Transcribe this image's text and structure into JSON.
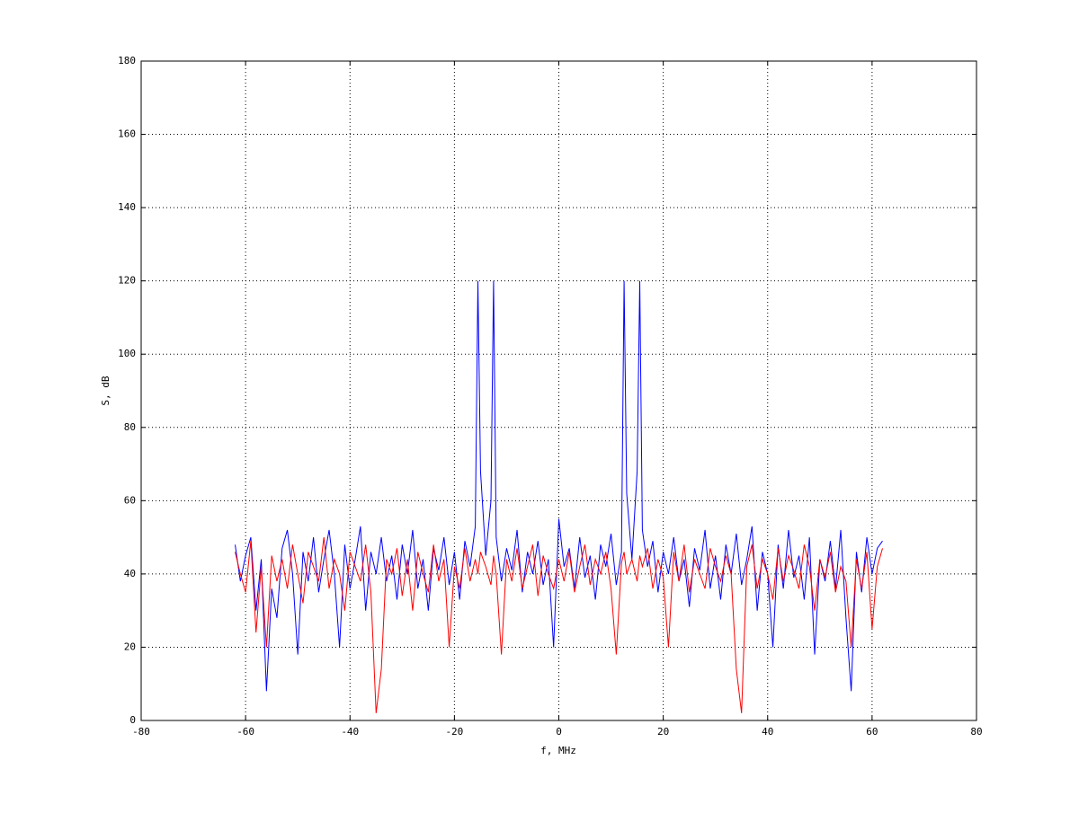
{
  "chart_data": {
    "type": "line",
    "xlabel": "f, MHz",
    "ylabel": "S, dB",
    "x": [
      -62,
      -61,
      -60,
      -59,
      -58,
      -57,
      -56,
      -55,
      -54,
      -53,
      -52,
      -51,
      -50,
      -49,
      -48,
      -47,
      -46,
      -45,
      -44,
      -43,
      -42,
      -41,
      -40,
      -39,
      -38,
      -37,
      -36,
      -35,
      -34,
      -33,
      -32,
      -31,
      -30,
      -29,
      -28,
      -27,
      -26,
      -25,
      -24,
      -23,
      -22,
      -21,
      -20,
      -19,
      -18,
      -17,
      -16,
      -15.5,
      -15,
      -14,
      -13,
      -12.5,
      -12,
      -11,
      -10,
      -9,
      -8,
      -7,
      -6,
      -5,
      -4,
      -3,
      -2,
      -1,
      0,
      1,
      2,
      3,
      4,
      5,
      6,
      7,
      8,
      9,
      10,
      11,
      12,
      12.5,
      13,
      14,
      15,
      15.5,
      16,
      17,
      18,
      19,
      20,
      21,
      22,
      23,
      24,
      25,
      26,
      27,
      28,
      29,
      30,
      31,
      32,
      33,
      34,
      35,
      36,
      37,
      38,
      39,
      40,
      41,
      42,
      43,
      44,
      45,
      46,
      47,
      48,
      49,
      50,
      51,
      52,
      53,
      54,
      55,
      56,
      57,
      58,
      59,
      60,
      61,
      62
    ],
    "series": [
      {
        "color": "#0000ff",
        "values": [
          48,
          38,
          45,
          50,
          30,
          44,
          8,
          36,
          28,
          47,
          52,
          40,
          18,
          46,
          38,
          50,
          35,
          44,
          52,
          40,
          20,
          48,
          36,
          44,
          53,
          30,
          46,
          40,
          50,
          38,
          45,
          33,
          48,
          40,
          52,
          36,
          44,
          30,
          47,
          41,
          50,
          37,
          46,
          33,
          49,
          42,
          53,
          120,
          68,
          45,
          60,
          120,
          50,
          38,
          47,
          41,
          52,
          35,
          46,
          40,
          49,
          37,
          44,
          20,
          55,
          42,
          47,
          36,
          50,
          39,
          45,
          33,
          48,
          42,
          51,
          37,
          46,
          120,
          62,
          44,
          68,
          120,
          52,
          42,
          49,
          35,
          46,
          40,
          50,
          38,
          44,
          31,
          47,
          41,
          52,
          36,
          45,
          33,
          48,
          40,
          51,
          37,
          44,
          53,
          30,
          46,
          40,
          20,
          48,
          36,
          52,
          39,
          45,
          33,
          50,
          18,
          44,
          38,
          49,
          36,
          52,
          28,
          8,
          46,
          35,
          50,
          40,
          47,
          49
        ]
      },
      {
        "color": "#ff0000",
        "values": [
          46,
          40,
          35,
          49,
          24,
          42,
          20,
          45,
          38,
          44,
          36,
          48,
          40,
          32,
          46,
          42,
          38,
          50,
          36,
          44,
          40,
          30,
          46,
          42,
          38,
          48,
          35,
          2,
          14,
          44,
          40,
          47,
          34,
          44,
          30,
          46,
          40,
          35,
          48,
          38,
          44,
          20,
          42,
          36,
          47,
          38,
          44,
          40,
          46,
          42,
          37,
          45,
          40,
          18,
          44,
          38,
          47,
          36,
          42,
          48,
          34,
          45,
          40,
          36,
          44,
          38,
          46,
          35,
          42,
          48,
          37,
          44,
          40,
          46,
          36,
          18,
          43,
          46,
          40,
          44,
          38,
          45,
          42,
          47,
          36,
          44,
          39,
          20,
          46,
          38,
          48,
          35,
          44,
          40,
          36,
          47,
          42,
          38,
          45,
          40,
          14,
          2,
          42,
          48,
          36,
          44,
          40,
          33,
          47,
          38,
          45,
          41,
          36,
          48,
          42,
          30,
          44,
          39,
          46,
          35,
          42,
          38,
          20,
          44,
          36,
          46,
          25,
          42,
          47
        ]
      }
    ],
    "xlim": [
      -80,
      80
    ],
    "xticks": [
      -80,
      -60,
      -40,
      -20,
      0,
      20,
      40,
      60,
      80
    ],
    "ylim": [
      0,
      180
    ],
    "yticks": [
      0,
      20,
      40,
      60,
      80,
      100,
      120,
      140,
      160,
      180
    ],
    "grid": true
  }
}
